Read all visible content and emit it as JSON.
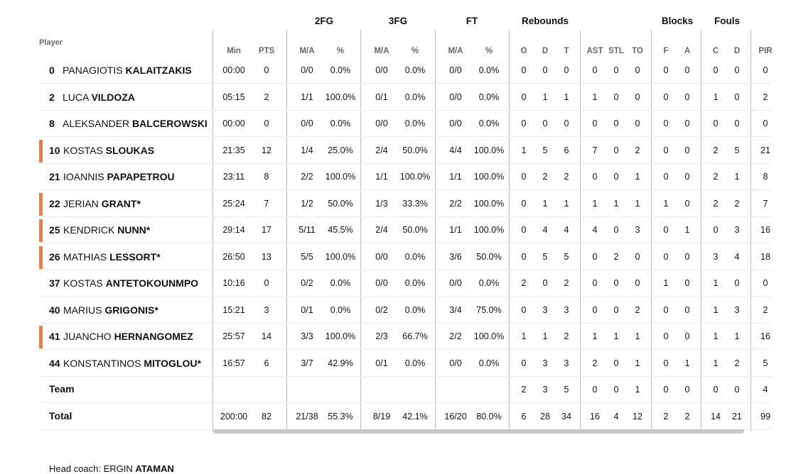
{
  "groups": {
    "fg2": "2FG",
    "fg3": "3FG",
    "ft": "FT",
    "reb": "Rebounds",
    "blk": "Blocks",
    "fouls": "Fouls"
  },
  "columns": {
    "player": "Player",
    "min": "Min",
    "pts": "PTS",
    "ma": "M/A",
    "pct": "%",
    "o": "O",
    "d": "D",
    "t": "T",
    "ast": "AST",
    "stl": "STL",
    "to": "TO",
    "f": "F",
    "a": "A",
    "c": "C",
    "fd": "D",
    "pir": "PIR"
  },
  "players": [
    {
      "num": "0",
      "first": "PANAGIOTIS",
      "last": "KALAITZAKIS",
      "starter": false,
      "stats": [
        "00:00",
        "0",
        "0/0",
        "0.0%",
        "0/0",
        "0.0%",
        "0/0",
        "0.0%",
        "0",
        "0",
        "0",
        "0",
        "0",
        "0",
        "0",
        "0",
        "0",
        "0",
        "0"
      ]
    },
    {
      "num": "2",
      "first": "LUCA",
      "last": "VILDOZA",
      "starter": false,
      "stats": [
        "05:15",
        "2",
        "1/1",
        "100.0%",
        "0/1",
        "0.0%",
        "0/0",
        "0.0%",
        "0",
        "1",
        "1",
        "1",
        "0",
        "0",
        "0",
        "0",
        "1",
        "0",
        "2"
      ]
    },
    {
      "num": "8",
      "first": "ALEKSANDER",
      "last": "BALCEROWSKI",
      "starter": false,
      "stats": [
        "00:00",
        "0",
        "0/0",
        "0.0%",
        "0/0",
        "0.0%",
        "0/0",
        "0.0%",
        "0",
        "0",
        "0",
        "0",
        "0",
        "0",
        "0",
        "0",
        "0",
        "0",
        "0"
      ]
    },
    {
      "num": "10",
      "first": "KOSTAS",
      "last": "SLOUKAS",
      "starter": true,
      "stats": [
        "21:35",
        "12",
        "1/4",
        "25.0%",
        "2/4",
        "50.0%",
        "4/4",
        "100.0%",
        "1",
        "5",
        "6",
        "7",
        "0",
        "2",
        "0",
        "0",
        "2",
        "5",
        "21"
      ]
    },
    {
      "num": "21",
      "first": "IOANNIS",
      "last": "PAPAPETROU",
      "starter": false,
      "stats": [
        "23:11",
        "8",
        "2/2",
        "100.0%",
        "1/1",
        "100.0%",
        "1/1",
        "100.0%",
        "0",
        "2",
        "2",
        "0",
        "0",
        "1",
        "0",
        "0",
        "2",
        "1",
        "8"
      ]
    },
    {
      "num": "22",
      "first": "JERIAN",
      "last": "GRANT*",
      "starter": true,
      "stats": [
        "25:24",
        "7",
        "1/2",
        "50.0%",
        "1/3",
        "33.3%",
        "2/2",
        "100.0%",
        "0",
        "1",
        "1",
        "1",
        "1",
        "1",
        "1",
        "0",
        "2",
        "2",
        "7"
      ]
    },
    {
      "num": "25",
      "first": "KENDRICK",
      "last": "NUNN*",
      "starter": true,
      "stats": [
        "29:14",
        "17",
        "5/11",
        "45.5%",
        "2/4",
        "50.0%",
        "1/1",
        "100.0%",
        "0",
        "4",
        "4",
        "4",
        "0",
        "3",
        "0",
        "1",
        "0",
        "3",
        "16"
      ]
    },
    {
      "num": "26",
      "first": "MATHIAS",
      "last": "LESSORT*",
      "starter": true,
      "stats": [
        "26:50",
        "13",
        "5/5",
        "100.0%",
        "0/0",
        "0.0%",
        "3/6",
        "50.0%",
        "0",
        "5",
        "5",
        "0",
        "2",
        "0",
        "0",
        "0",
        "3",
        "4",
        "18"
      ]
    },
    {
      "num": "37",
      "first": "KOSTAS",
      "last": "ANTETOKOUNMPO",
      "starter": false,
      "stats": [
        "10:16",
        "0",
        "0/2",
        "0.0%",
        "0/0",
        "0.0%",
        "0/0",
        "0.0%",
        "2",
        "0",
        "2",
        "0",
        "0",
        "0",
        "1",
        "0",
        "1",
        "0",
        "0"
      ]
    },
    {
      "num": "40",
      "first": "MARIUS",
      "last": "GRIGONIS*",
      "starter": false,
      "stats": [
        "15:21",
        "3",
        "0/1",
        "0.0%",
        "0/2",
        "0.0%",
        "3/4",
        "75.0%",
        "0",
        "3",
        "3",
        "0",
        "0",
        "2",
        "0",
        "0",
        "1",
        "3",
        "2"
      ]
    },
    {
      "num": "41",
      "first": "JUANCHO",
      "last": "HERNANGOMEZ",
      "starter": true,
      "stats": [
        "25:57",
        "14",
        "3/3",
        "100.0%",
        "2/3",
        "66.7%",
        "2/2",
        "100.0%",
        "1",
        "1",
        "2",
        "1",
        "1",
        "1",
        "0",
        "0",
        "1",
        "1",
        "16"
      ]
    },
    {
      "num": "44",
      "first": "KONSTANTINOS",
      "last": "MITOGLOU*",
      "starter": false,
      "stats": [
        "16:57",
        "6",
        "3/7",
        "42.9%",
        "0/1",
        "0.0%",
        "0/0",
        "0.0%",
        "0",
        "3",
        "3",
        "2",
        "0",
        "1",
        "0",
        "1",
        "1",
        "2",
        "5"
      ]
    }
  ],
  "team": {
    "label": "Team",
    "stats": [
      "",
      "",
      "",
      "",
      "",
      "",
      "",
      "",
      "2",
      "3",
      "5",
      "0",
      "0",
      "1",
      "0",
      "0",
      "0",
      "0",
      "4"
    ]
  },
  "total": {
    "label": "Total",
    "stats": [
      "200:00",
      "82",
      "21/38",
      "55.3%",
      "8/19",
      "42.1%",
      "16/20",
      "80.0%",
      "6",
      "28",
      "34",
      "16",
      "4",
      "12",
      "2",
      "2",
      "14",
      "21",
      "99"
    ]
  },
  "coach": {
    "prefix": "Head coach:",
    "first": "ERGIN",
    "last": "ATAMAN"
  },
  "colors": {
    "starter": "#f07c38"
  }
}
